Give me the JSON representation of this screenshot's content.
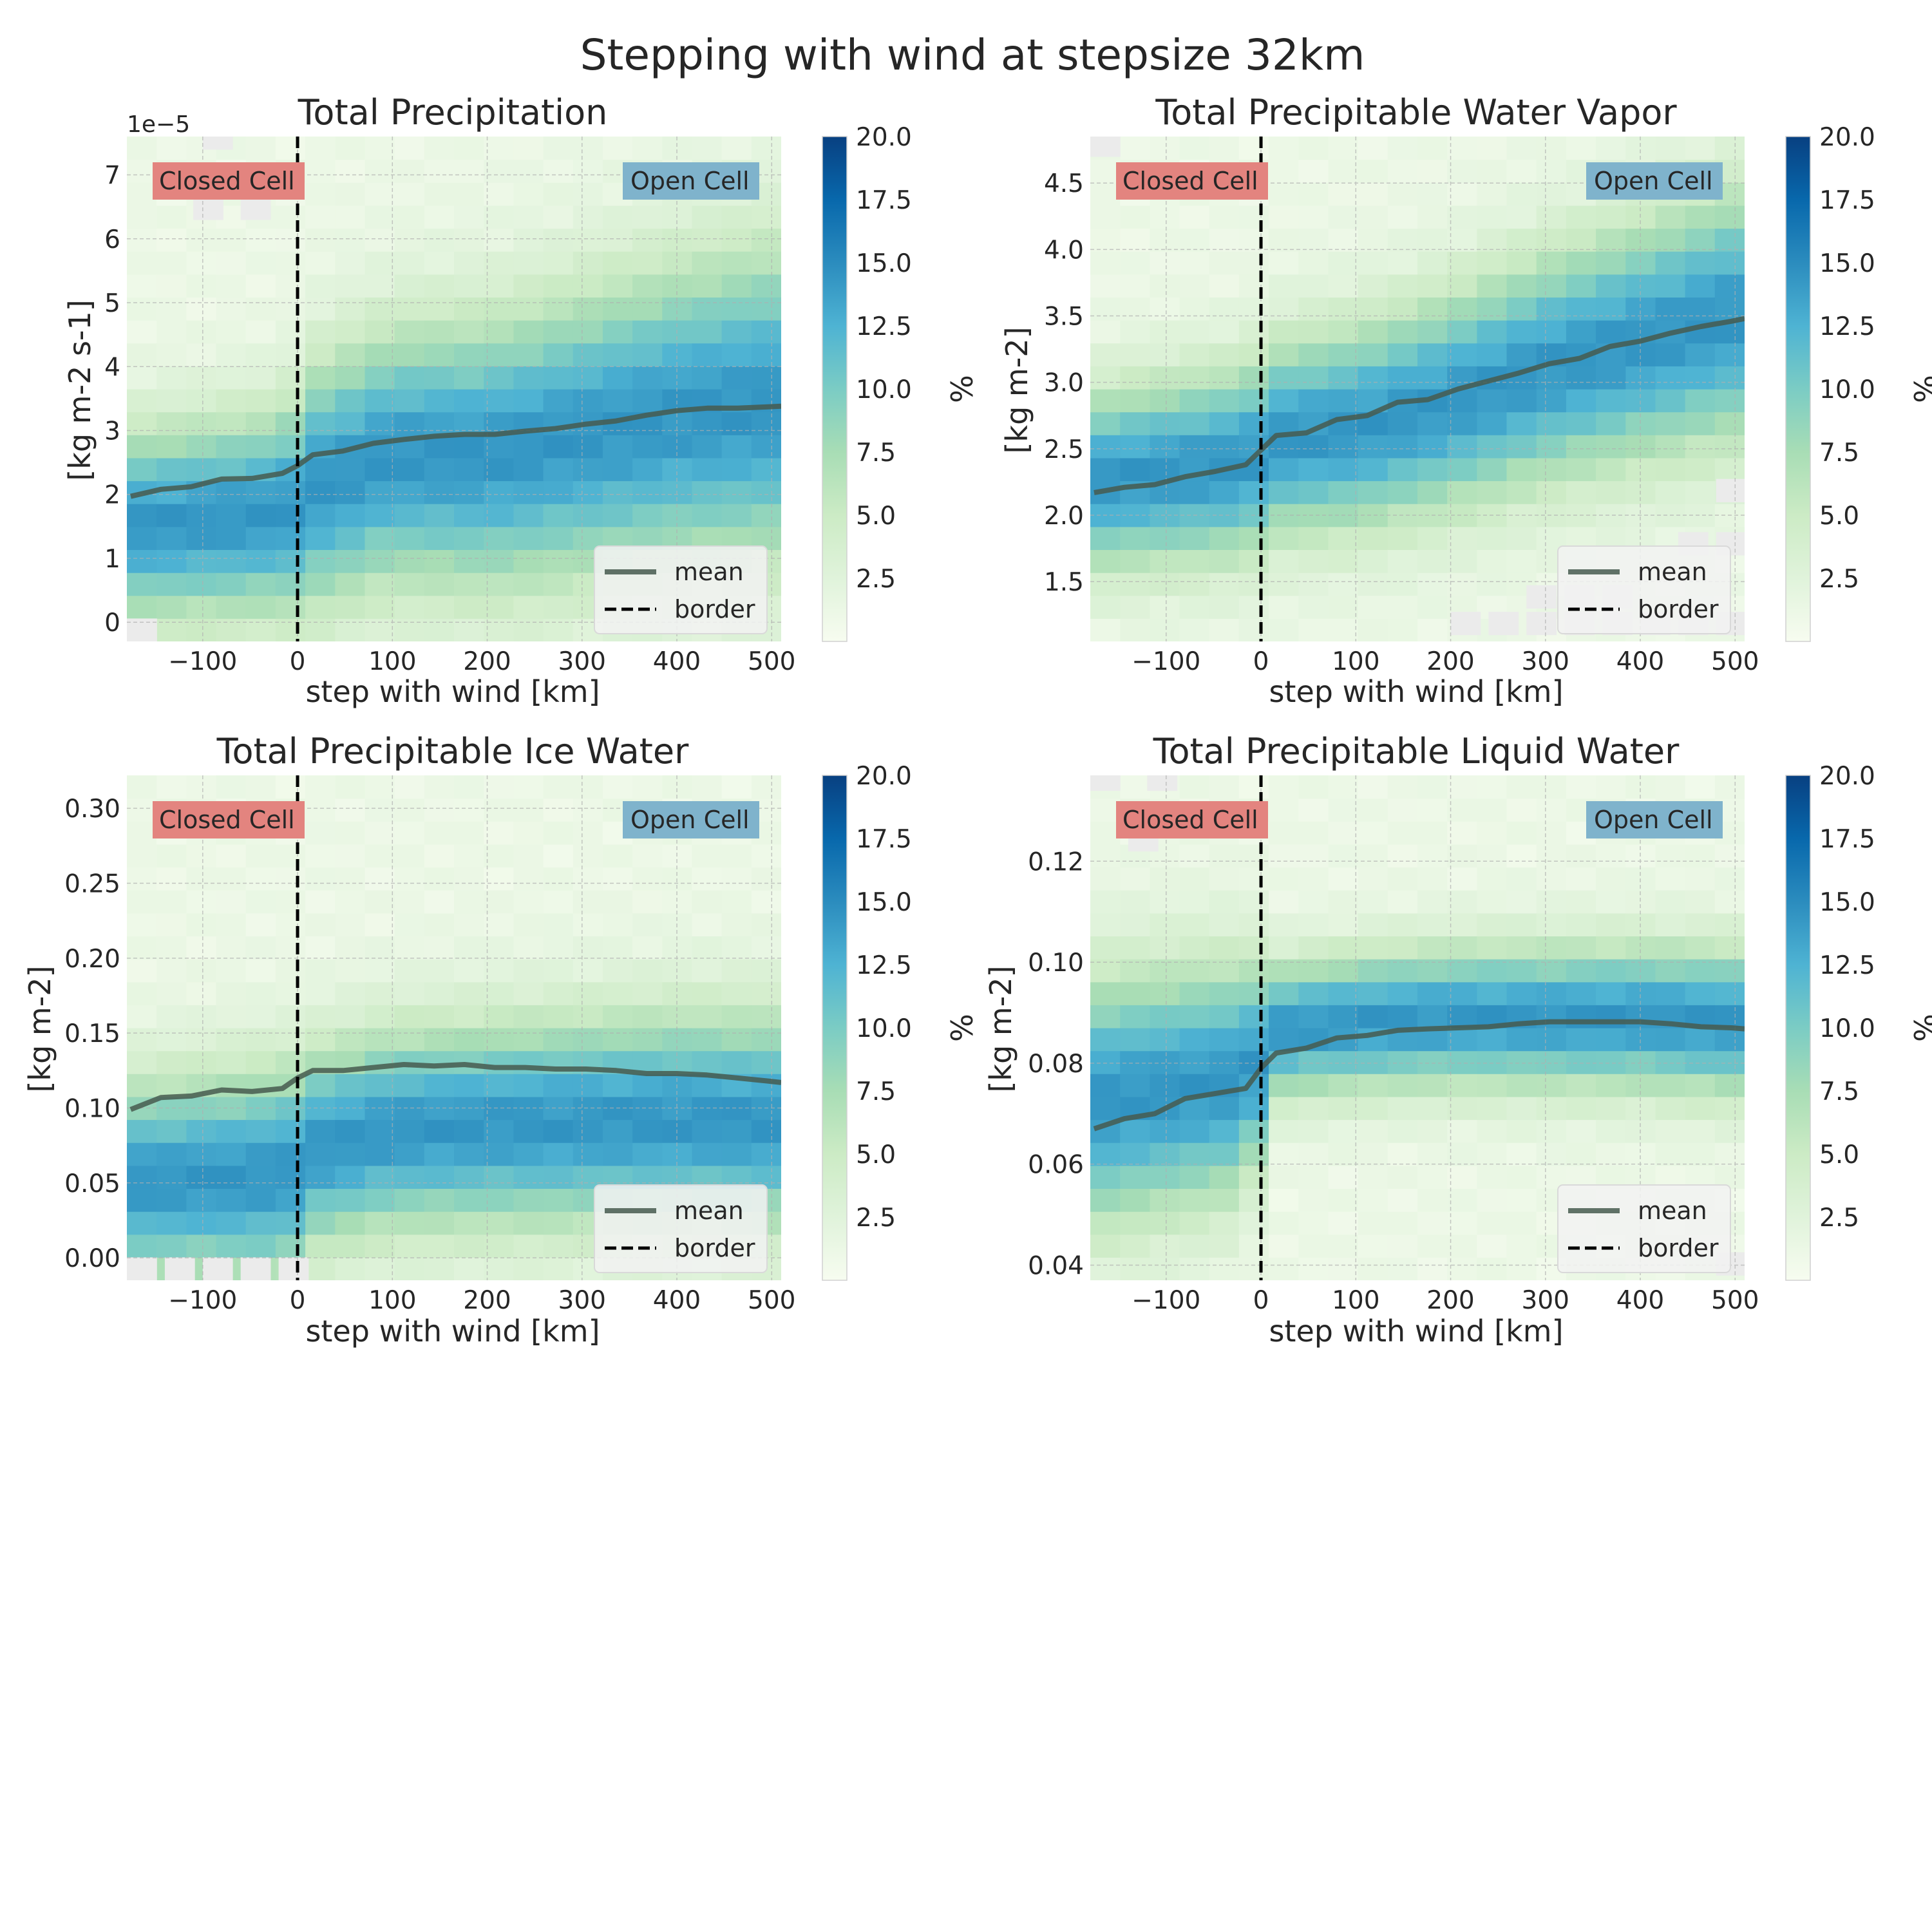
{
  "figure": {
    "title": "Stepping with wind at stepsize 32km"
  },
  "colorbar": {
    "label": "%",
    "range": [
      0,
      20
    ],
    "ticks": [
      "2.5",
      "5.0",
      "7.5",
      "10.0",
      "12.5",
      "15.0",
      "17.5",
      "20.0"
    ],
    "colormap": [
      "#f7fcf0",
      "#e0f3db",
      "#ccebc5",
      "#a8ddb5",
      "#7bccc4",
      "#4eb3d3",
      "#2b8cbe",
      "#0868ac",
      "#084081"
    ]
  },
  "legend": {
    "mean_label": "mean",
    "border_label": "border"
  },
  "annotations": {
    "closed_cell": "Closed Cell",
    "open_cell": "Open Cell"
  },
  "colors": {
    "mean_line": "#475a4f",
    "border_line": "#000000",
    "closed_cell_box": "#e3847f",
    "open_cell_box": "#7fb3cc",
    "missing_bin": "#ebebeb"
  },
  "chart_data": [
    {
      "type": "heatmap",
      "title": "Total Precipitation",
      "xlabel": "step with wind [km]",
      "ylabel": "[kg m-2 s-1]",
      "y_offset_text": "1e−5",
      "xlim": [
        -180,
        510
      ],
      "ylim": [
        -0.3,
        7.6
      ],
      "x_ticks": [
        -100,
        0,
        100,
        200,
        300,
        400,
        500
      ],
      "x_tick_labels": [
        "−100",
        "0",
        "100",
        "200",
        "300",
        "400",
        "500"
      ],
      "y_ticks": [
        0,
        1,
        2,
        3,
        4,
        5,
        6,
        7
      ],
      "y_tick_labels": [
        "0",
        "1",
        "2",
        "3",
        "4",
        "5",
        "6",
        "7"
      ],
      "mode_y": {
        "x": [
          -180,
          -10,
          0,
          100,
          200,
          300,
          400,
          500
        ],
        "y": [
          1.5,
          1.7,
          2.0,
          2.6,
          2.6,
          2.9,
          3.2,
          3.4
        ]
      },
      "spread": {
        "x": [
          -180,
          -10,
          0,
          500
        ],
        "y": [
          1.0,
          1.1,
          1.3,
          1.7
        ]
      },
      "mean": {
        "x": [
          -176,
          -144,
          -112,
          -80,
          -48,
          -16,
          0,
          16,
          48,
          80,
          112,
          144,
          176,
          208,
          240,
          272,
          304,
          336,
          368,
          400,
          432,
          464,
          496,
          510
        ],
        "y": [
          1.97,
          2.08,
          2.12,
          2.24,
          2.25,
          2.33,
          2.45,
          2.62,
          2.68,
          2.8,
          2.86,
          2.91,
          2.94,
          2.94,
          2.99,
          3.03,
          3.1,
          3.15,
          3.24,
          3.31,
          3.35,
          3.35,
          3.37,
          3.38
        ]
      },
      "border_x": 0,
      "missing_bins": [
        [
          -180,
          -0.3
        ],
        [
          -100,
          7.4
        ],
        [
          -60,
          6.3
        ],
        [
          -110,
          6.3
        ]
      ]
    },
    {
      "type": "heatmap",
      "title": "Total Precipitable Water Vapor",
      "xlabel": "step with wind [km]",
      "ylabel": "[kg m-2]",
      "y_offset_text": "",
      "xlim": [
        -180,
        510
      ],
      "ylim": [
        1.05,
        4.85
      ],
      "x_ticks": [
        -100,
        0,
        100,
        200,
        300,
        400,
        500
      ],
      "x_tick_labels": [
        "−100",
        "0",
        "100",
        "200",
        "300",
        "400",
        "500"
      ],
      "y_ticks": [
        1.5,
        2.0,
        2.5,
        3.0,
        3.5,
        4.0,
        4.5
      ],
      "y_tick_labels": [
        "1.5",
        "2.0",
        "2.5",
        "3.0",
        "3.5",
        "4.0",
        "4.5"
      ],
      "mode_y": {
        "x": [
          -180,
          -10,
          0,
          100,
          200,
          300,
          400,
          500
        ],
        "y": [
          2.25,
          2.4,
          2.55,
          2.65,
          2.85,
          3.1,
          3.3,
          3.5
        ]
      },
      "spread": {
        "x": [
          -180,
          -10,
          0,
          500
        ],
        "y": [
          0.45,
          0.5,
          0.5,
          0.65
        ]
      },
      "mean": {
        "x": [
          -176,
          -144,
          -112,
          -80,
          -48,
          -16,
          0,
          16,
          48,
          80,
          112,
          144,
          176,
          208,
          240,
          272,
          304,
          336,
          368,
          400,
          432,
          464,
          496,
          510
        ],
        "y": [
          2.17,
          2.21,
          2.23,
          2.29,
          2.33,
          2.38,
          2.49,
          2.6,
          2.62,
          2.72,
          2.75,
          2.85,
          2.87,
          2.95,
          3.01,
          3.07,
          3.14,
          3.18,
          3.27,
          3.31,
          3.37,
          3.42,
          3.46,
          3.48
        ]
      },
      "border_x": 0,
      "missing_bins": [
        [
          200,
          1.1
        ],
        [
          240,
          1.1
        ],
        [
          280,
          1.1
        ],
        [
          320,
          1.1
        ],
        [
          360,
          1.1
        ],
        [
          400,
          1.1
        ],
        [
          440,
          1.1
        ],
        [
          480,
          1.1
        ],
        [
          280,
          1.3
        ],
        [
          320,
          1.3
        ],
        [
          360,
          1.3
        ],
        [
          440,
          1.7
        ],
        [
          480,
          1.7
        ],
        [
          480,
          2.1
        ],
        [
          -180,
          4.7
        ]
      ]
    },
    {
      "type": "heatmap",
      "title": "Total Precipitable Ice Water",
      "xlabel": "step with wind [km]",
      "ylabel": "[kg m-2]",
      "y_offset_text": "",
      "xlim": [
        -180,
        510
      ],
      "ylim": [
        -0.015,
        0.322
      ],
      "x_ticks": [
        -100,
        0,
        100,
        200,
        300,
        400,
        500
      ],
      "x_tick_labels": [
        "−100",
        "0",
        "100",
        "200",
        "300",
        "400",
        "500"
      ],
      "y_ticks": [
        0.0,
        0.05,
        0.1,
        0.15,
        0.2,
        0.25,
        0.3
      ],
      "y_tick_labels": [
        "0.00",
        "0.05",
        "0.10",
        "0.15",
        "0.20",
        "0.25",
        "0.30"
      ],
      "mode_y": {
        "x": [
          -180,
          -10,
          0,
          100,
          200,
          300,
          400,
          500
        ],
        "y": [
          0.05,
          0.055,
          0.07,
          0.085,
          0.088,
          0.09,
          0.092,
          0.09
        ]
      },
      "spread": {
        "x": [
          -180,
          -10,
          0,
          500
        ],
        "y": [
          0.045,
          0.05,
          0.045,
          0.05
        ]
      },
      "mean": {
        "x": [
          -176,
          -144,
          -112,
          -80,
          -48,
          -16,
          0,
          16,
          48,
          80,
          112,
          144,
          176,
          208,
          240,
          272,
          304,
          336,
          368,
          400,
          432,
          464,
          496,
          510
        ],
        "y": [
          0.099,
          0.107,
          0.108,
          0.112,
          0.111,
          0.113,
          0.12,
          0.125,
          0.125,
          0.127,
          0.129,
          0.128,
          0.129,
          0.127,
          0.127,
          0.126,
          0.126,
          0.125,
          0.123,
          0.123,
          0.122,
          0.12,
          0.118,
          0.117
        ]
      },
      "border_x": 0,
      "missing_bins": [
        [
          -180,
          -0.015
        ],
        [
          -140,
          -0.015
        ],
        [
          -100,
          -0.015
        ],
        [
          -60,
          -0.015
        ],
        [
          -20,
          -0.015
        ]
      ]
    },
    {
      "type": "heatmap",
      "title": "Total Precipitable Liquid Water",
      "xlabel": "step with wind [km]",
      "ylabel": "[kg m-2]",
      "y_offset_text": "",
      "xlim": [
        -180,
        510
      ],
      "ylim": [
        0.037,
        0.137
      ],
      "x_ticks": [
        -100,
        0,
        100,
        200,
        300,
        400,
        500
      ],
      "x_tick_labels": [
        "−100",
        "0",
        "100",
        "200",
        "300",
        "400",
        "500"
      ],
      "y_ticks": [
        0.04,
        0.06,
        0.08,
        0.1,
        0.12
      ],
      "y_tick_labels": [
        "0.04",
        "0.06",
        "0.08",
        "0.10",
        "0.12"
      ],
      "mode_y": {
        "x": [
          -180,
          -10,
          0,
          100,
          200,
          300,
          400,
          500
        ],
        "y": [
          0.072,
          0.077,
          0.086,
          0.088,
          0.089,
          0.089,
          0.089,
          0.088
        ]
      },
      "spread": {
        "x": [
          -180,
          -10,
          0,
          500
        ],
        "y": [
          0.017,
          0.016,
          0.009,
          0.01
        ]
      },
      "mean": {
        "x": [
          -176,
          -144,
          -112,
          -80,
          -48,
          -16,
          0,
          16,
          48,
          80,
          112,
          144,
          176,
          208,
          240,
          272,
          304,
          336,
          368,
          400,
          432,
          464,
          496,
          510
        ],
        "y": [
          0.067,
          0.069,
          0.07,
          0.073,
          0.074,
          0.075,
          0.079,
          0.082,
          0.083,
          0.085,
          0.0855,
          0.0865,
          0.0868,
          0.087,
          0.0872,
          0.0878,
          0.0882,
          0.0882,
          0.0882,
          0.0882,
          0.0878,
          0.0872,
          0.087,
          0.0868
        ]
      },
      "border_x": 0,
      "missing_bins": [
        [
          -180,
          0.134
        ],
        [
          -120,
          0.134
        ],
        [
          -140,
          0.122
        ],
        [
          480,
          0.038
        ]
      ]
    }
  ]
}
